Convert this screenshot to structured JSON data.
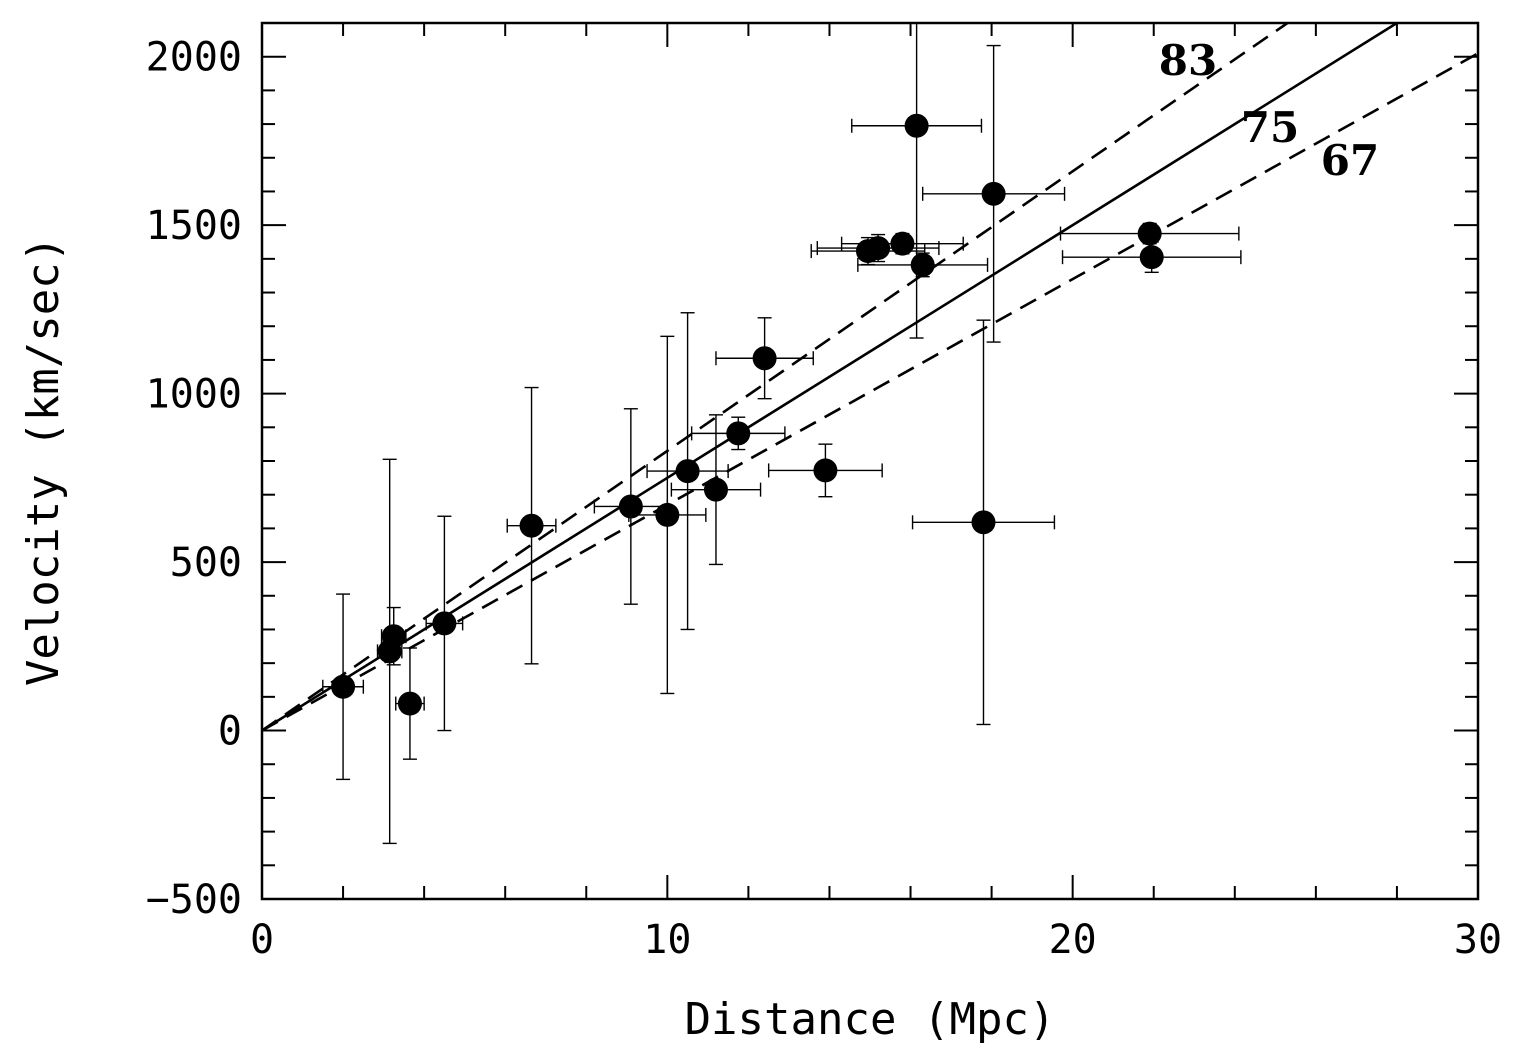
{
  "chart_data": {
    "type": "scatter",
    "title": "",
    "xlabel": "Distance (Mpc)",
    "ylabel": "Velocity (km/sec)",
    "xlim": [
      0,
      30
    ],
    "ylim": [
      -500,
      2100
    ],
    "x_ticks": [
      0,
      10,
      20,
      30
    ],
    "x_tick_labels": [
      "0",
      "10",
      "20",
      "30"
    ],
    "x_minor_step": 2,
    "y_ticks": [
      -500,
      0,
      500,
      1000,
      1500,
      2000
    ],
    "y_tick_labels": [
      "−500",
      "0",
      "500",
      "1000",
      "1500",
      "2000"
    ],
    "y_minor_step": 100,
    "grid": false,
    "colors": {
      "ink": "#000000",
      "background": "#ffffff"
    },
    "points": [
      {
        "x": 2.0,
        "y": 130,
        "xerr": 0.5,
        "yerr": 275
      },
      {
        "x": 3.15,
        "y": 235,
        "xerr": 0.3,
        "yerr": 570
      },
      {
        "x": 3.25,
        "y": 280,
        "xerr": 0.3,
        "yerr": 85
      },
      {
        "x": 3.65,
        "y": 80,
        "xerr": 0.35,
        "yerr": 165
      },
      {
        "x": 4.5,
        "y": 318,
        "xerr": 0.45,
        "yerr": 318
      },
      {
        "x": 6.65,
        "y": 608,
        "xerr": 0.6,
        "yerr": 410
      },
      {
        "x": 9.1,
        "y": 665,
        "xerr": 0.9,
        "yerr": 290
      },
      {
        "x": 10.0,
        "y": 640,
        "xerr": 0.95,
        "yerr": 530
      },
      {
        "x": 10.5,
        "y": 770,
        "xerr": 1.0,
        "yerr": 470
      },
      {
        "x": 11.2,
        "y": 715,
        "xerr": 1.1,
        "yerr": 222
      },
      {
        "x": 11.75,
        "y": 882,
        "xerr": 1.15,
        "yerr": 48
      },
      {
        "x": 12.4,
        "y": 1105,
        "xerr": 1.2,
        "yerr": 120
      },
      {
        "x": 13.9,
        "y": 772,
        "xerr": 1.4,
        "yerr": 78
      },
      {
        "x": 14.95,
        "y": 1423,
        "xerr": 1.4,
        "yerr": 40
      },
      {
        "x": 15.2,
        "y": 1432,
        "xerr": 1.5,
        "yerr": 40
      },
      {
        "x": 15.8,
        "y": 1445,
        "xerr": 1.5,
        "yerr": 30
      },
      {
        "x": 16.15,
        "y": 1795,
        "xerr": 1.6,
        "yerr": 630
      },
      {
        "x": 16.3,
        "y": 1382,
        "xerr": 1.6,
        "yerr": 35
      },
      {
        "x": 17.8,
        "y": 618,
        "xerr": 1.75,
        "yerr": 600
      },
      {
        "x": 18.05,
        "y": 1593,
        "xerr": 1.75,
        "yerr": 440
      },
      {
        "x": 21.9,
        "y": 1475,
        "xerr": 2.2,
        "yerr": 30
      },
      {
        "x": 21.95,
        "y": 1405,
        "xerr": 2.2,
        "yerr": 45
      }
    ],
    "fit_lines": [
      {
        "label": "83",
        "slope": 83,
        "style": "dashed"
      },
      {
        "label": "75",
        "slope": 75,
        "style": "solid"
      },
      {
        "label": "67",
        "slope": 67,
        "style": "dashed"
      }
    ]
  }
}
